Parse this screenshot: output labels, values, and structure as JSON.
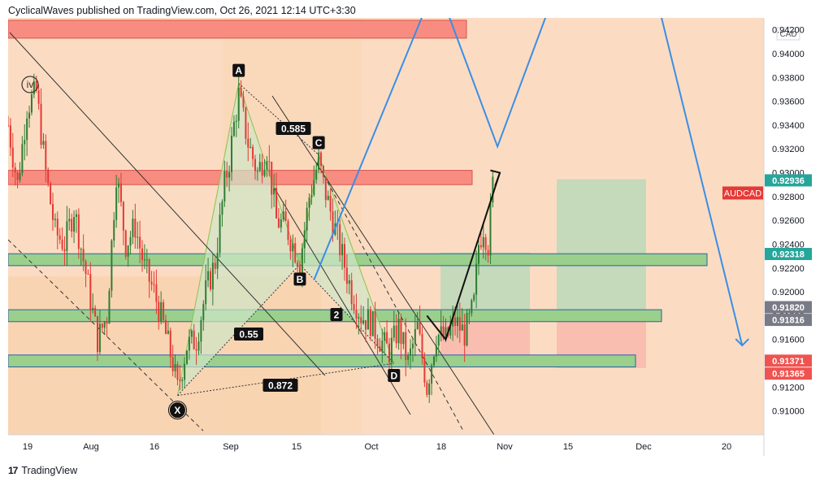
{
  "header": {
    "publisher_line": "CyclicalWaves published on TradingView.com, Oct 26, 2021 12:14 UTC+3:30"
  },
  "footer": {
    "logo_icon": "tradingview-logo-icon",
    "brand": "TradingView"
  },
  "colors": {
    "background": "#fbdcc2",
    "candle_red": "#e53935",
    "candle_green": "#2e7d32",
    "resistance_zone": "#f88c80",
    "support_zone": "#9bcf8c",
    "projection_line": "#3a8ee6",
    "channel_line": "#333333",
    "harmonic_fill": "#cfe6c8",
    "target_box_green": "#b3d8b8",
    "stop_box_red": "#f8b4a8",
    "last_price_bg": "#26a69a",
    "low_price_bg": "#ef5350",
    "gray_label_bg": "#787b86"
  },
  "chart_data": {
    "type": "candlestick",
    "symbol": "AUDCAD",
    "currency": "CAD",
    "x_axis": {
      "tick_labels": [
        "19",
        "Aug",
        "16",
        "Sep",
        "15",
        "Oct",
        "18",
        "Nov",
        "15",
        "Dec",
        "20"
      ]
    },
    "y_axis": {
      "range": [
        0.908,
        0.943
      ],
      "tick_labels": [
        "0.94200",
        "0.94000",
        "0.93800",
        "0.93600",
        "0.93400",
        "0.93200",
        "0.93000",
        "0.92800",
        "0.92600",
        "0.92400",
        "0.92200",
        "0.92000",
        "0.91800",
        "0.91600",
        "0.91400",
        "0.91200",
        "0.91000"
      ]
    },
    "price_labels": [
      {
        "text": "0.92936",
        "value": 0.92936,
        "style": "last"
      },
      {
        "text": "0.92318",
        "value": 0.92318,
        "style": "support"
      },
      {
        "text": "0.91820",
        "value": 0.9182,
        "style": "gray"
      },
      {
        "text": "0.91816",
        "value": 0.91816,
        "style": "gray"
      },
      {
        "text": "0.91371",
        "value": 0.91371,
        "style": "red"
      },
      {
        "text": "0.91365",
        "value": 0.91365,
        "style": "red"
      }
    ],
    "symbol_label": "AUDCAD",
    "pattern_points": [
      {
        "label": "X",
        "day": 36,
        "price": 0.9113
      },
      {
        "label": "A",
        "day": 49,
        "price": 0.9375
      },
      {
        "label": "B",
        "day": 62,
        "price": 0.9223
      },
      {
        "label": "C",
        "day": 66,
        "price": 0.9315
      },
      {
        "label": "D",
        "day": 82,
        "price": 0.914
      }
    ],
    "ratios": [
      "0.585",
      "0.55",
      "0.872"
    ],
    "wave_labels": [
      "iv",
      "2"
    ],
    "zones": [
      {
        "type": "resistance",
        "top": 0.9428,
        "bottom": 0.9413
      },
      {
        "type": "resistance",
        "top": 0.9302,
        "bottom": 0.929
      },
      {
        "type": "support",
        "top": 0.9232,
        "bottom": 0.9222
      },
      {
        "type": "support",
        "top": 0.9185,
        "bottom": 0.9175
      },
      {
        "type": "support",
        "top": 0.9147,
        "bottom": 0.9137
      }
    ],
    "projection_path": [
      [
        65,
        0.921
      ],
      [
        91,
        0.946
      ],
      [
        104,
        0.9322
      ],
      [
        117,
        0.946
      ],
      [
        137,
        0.946
      ],
      [
        156,
        0.9155
      ]
    ],
    "candle_series": {
      "start_day": 0,
      "end_day": 103,
      "anchors": [
        [
          0,
          0.934
        ],
        [
          2,
          0.929
        ],
        [
          4,
          0.9355
        ],
        [
          6,
          0.9368
        ],
        [
          8,
          0.93
        ],
        [
          10,
          0.925
        ],
        [
          12,
          0.924
        ],
        [
          14,
          0.927
        ],
        [
          17,
          0.9205
        ],
        [
          19,
          0.916
        ],
        [
          21,
          0.918
        ],
        [
          23,
          0.93
        ],
        [
          25,
          0.924
        ],
        [
          27,
          0.9255
        ],
        [
          29,
          0.922
        ],
        [
          31,
          0.92
        ],
        [
          33,
          0.9172
        ],
        [
          35,
          0.914
        ],
        [
          36,
          0.9118
        ],
        [
          38,
          0.9155
        ],
        [
          40,
          0.916
        ],
        [
          42,
          0.92
        ],
        [
          44,
          0.9225
        ],
        [
          46,
          0.929
        ],
        [
          47,
          0.931
        ],
        [
          48,
          0.934
        ],
        [
          49,
          0.9365
        ],
        [
          51,
          0.9325
        ],
        [
          53,
          0.93
        ],
        [
          55,
          0.932
        ],
        [
          57,
          0.926
        ],
        [
          59,
          0.9255
        ],
        [
          61,
          0.9235
        ],
        [
          62,
          0.9225
        ],
        [
          64,
          0.928
        ],
        [
          66,
          0.931
        ],
        [
          67,
          0.929
        ],
        [
          69,
          0.926
        ],
        [
          71,
          0.923
        ],
        [
          73,
          0.92
        ],
        [
          75,
          0.918
        ],
        [
          77,
          0.9175
        ],
        [
          79,
          0.916
        ],
        [
          81,
          0.915
        ],
        [
          83,
          0.917
        ],
        [
          85,
          0.914
        ],
        [
          87,
          0.917
        ],
        [
          89,
          0.912
        ],
        [
          91,
          0.9165
        ],
        [
          93,
          0.916
        ],
        [
          95,
          0.9175
        ],
        [
          97,
          0.9165
        ],
        [
          98,
          0.9175
        ],
        [
          99,
          0.919
        ],
        [
          100,
          0.924
        ],
        [
          101,
          0.9255
        ],
        [
          102,
          0.924
        ],
        [
          103,
          0.929
        ]
      ]
    }
  }
}
